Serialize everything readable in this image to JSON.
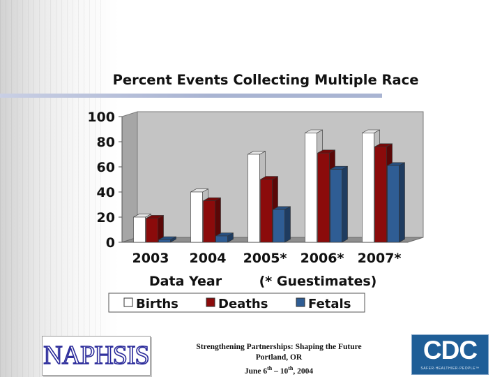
{
  "chart_data": {
    "type": "bar",
    "title": "Percent Events Collecting Multiple Race",
    "categories": [
      "2003",
      "2004",
      "2005*",
      "2006*",
      "2007*"
    ],
    "series": [
      {
        "name": "Births",
        "color": "#ffffff",
        "values": [
          20,
          40,
          70,
          87,
          87
        ]
      },
      {
        "name": "Deaths",
        "color": "#8b0b0b",
        "values": [
          19,
          33,
          50,
          71,
          76
        ]
      },
      {
        "name": "Fetals",
        "color": "#2f5d94",
        "values": [
          2,
          5,
          26,
          58,
          61
        ]
      }
    ],
    "yticks": [
      "0",
      "20",
      "40",
      "60",
      "80",
      "100"
    ],
    "ylim": [
      0,
      100
    ],
    "xlabel_left": "Data Year",
    "xlabel_right": "(* Guestimates)",
    "legend_position": "bottom",
    "grid": false
  },
  "footer": {
    "line1": "Strengthening Partnerships: Shaping the Future",
    "line2": "Portland, OR",
    "line3_pre": "June 6",
    "line3_sup1": "th",
    "line3_mid": " – 10",
    "line3_sup2": "th",
    "line3_post": ", 2004"
  },
  "logos": {
    "left_text": "NAPHSIS",
    "right_text": "CDC",
    "right_tagline": "SAFER·HEALTHIER·PEOPLE™"
  }
}
